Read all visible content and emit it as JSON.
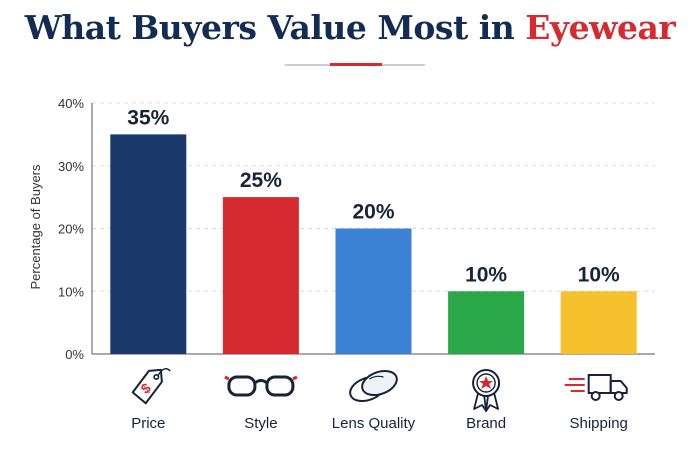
{
  "title": {
    "main": "What Buyers Value Most in",
    "accent": "Eyewear"
  },
  "colors": {
    "title": "#132c54",
    "accent": "#d42a30"
  },
  "chart_data": {
    "type": "bar",
    "title": "What Buyers Value Most in Eyewear",
    "ylabel": "Percentage of Buyers",
    "xlabel": "",
    "ylim": [
      0,
      40
    ],
    "yticks": [
      "0%",
      "10%",
      "20%",
      "30%",
      "40%"
    ],
    "grid": true,
    "categories": [
      "Price",
      "Style",
      "Lens Quality",
      "Brand",
      "Shipping"
    ],
    "values": [
      35,
      25,
      20,
      10,
      10
    ],
    "value_labels": [
      "35%",
      "25%",
      "20%",
      "10%",
      "10%"
    ],
    "bar_colors": [
      "#1b3a6b",
      "#d42a30",
      "#3b82d4",
      "#2aa84a",
      "#f6c12c"
    ],
    "icons": [
      "price-tag-icon",
      "glasses-icon",
      "lens-icon",
      "award-ribbon-icon",
      "delivery-truck-icon"
    ]
  }
}
